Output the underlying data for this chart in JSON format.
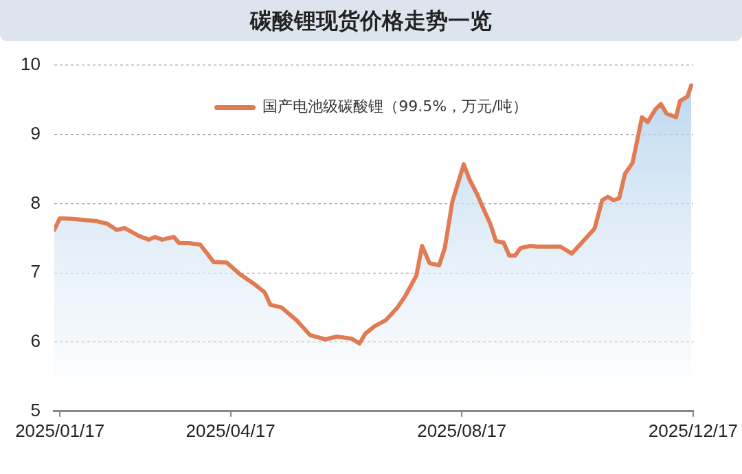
{
  "chart_data": {
    "type": "area",
    "title": "碳酸锂现货价格走势一览",
    "x": [
      "2025-01-14",
      "2025-01-17",
      "2025-01-24",
      "2025-02-05",
      "2025-02-11",
      "2025-02-16",
      "2025-02-20",
      "2025-02-24",
      "2025-02-28",
      "2025-03-05",
      "2025-03-08",
      "2025-03-12",
      "2025-03-18",
      "2025-03-21",
      "2025-03-26",
      "2025-04-01",
      "2025-04-08",
      "2025-04-15",
      "2025-04-22",
      "2025-04-29",
      "2025-05-05",
      "2025-05-08",
      "2025-05-14",
      "2025-05-22",
      "2025-05-29",
      "2025-06-06",
      "2025-06-12",
      "2025-06-20",
      "2025-06-24",
      "2025-06-27",
      "2025-07-02",
      "2025-07-08",
      "2025-07-14",
      "2025-07-18",
      "2025-07-24",
      "2025-07-27",
      "2025-07-31",
      "2025-08-05",
      "2025-08-08",
      "2025-08-12",
      "2025-08-18",
      "2025-08-21",
      "2025-08-25",
      "2025-08-29",
      "2025-09-01",
      "2025-09-04",
      "2025-09-08",
      "2025-09-11",
      "2025-09-14",
      "2025-09-17",
      "2025-09-22",
      "2025-09-26",
      "2025-10-08",
      "2025-10-14",
      "2025-10-19",
      "2025-10-26",
      "2025-10-30",
      "2025-11-02",
      "2025-11-05",
      "2025-11-08",
      "2025-11-11",
      "2025-11-15",
      "2025-11-20",
      "2025-11-23",
      "2025-11-27",
      "2025-11-30",
      "2025-12-03",
      "2025-12-08",
      "2025-12-10",
      "2025-12-14",
      "2025-12-16"
    ],
    "series": [
      {
        "name": "国产电池级碳酸锂（99.5%，万元/吨）",
        "color": "#e07b54",
        "values": [
          7.62,
          7.79,
          7.78,
          7.75,
          7.71,
          7.62,
          7.65,
          7.59,
          7.53,
          7.48,
          7.52,
          7.48,
          7.52,
          7.43,
          7.43,
          7.41,
          7.16,
          7.15,
          6.98,
          6.85,
          6.72,
          6.54,
          6.5,
          6.31,
          6.1,
          6.04,
          6.08,
          6.05,
          5.98,
          6.12,
          6.23,
          6.32,
          6.5,
          6.66,
          6.96,
          7.39,
          7.14,
          7.11,
          7.36,
          8.03,
          8.57,
          8.35,
          8.14,
          7.89,
          7.71,
          7.46,
          7.44,
          7.25,
          7.25,
          7.36,
          7.39,
          7.38,
          7.38,
          7.28,
          7.43,
          7.64,
          8.05,
          8.1,
          8.05,
          8.08,
          8.43,
          8.59,
          9.25,
          9.18,
          9.36,
          9.44,
          9.3,
          9.25,
          9.48,
          9.55,
          9.71
        ]
      }
    ],
    "xlim": [
      "2025-01-14",
      "2025-12-17"
    ],
    "xticks": [
      {
        "value": "2025-01-17",
        "label": "2025/01/17"
      },
      {
        "value": "2025-04-17",
        "label": "2025/04/17"
      },
      {
        "value": "2025-08-17",
        "label": "2025/08/17"
      },
      {
        "value": "2025-12-17",
        "label": "2025/12/17"
      }
    ],
    "ylim": [
      5,
      10
    ],
    "yticks": [
      5,
      6,
      7,
      8,
      9,
      10
    ],
    "grid": "y",
    "legend": "top",
    "marker": "none",
    "line_style": "solid"
  }
}
